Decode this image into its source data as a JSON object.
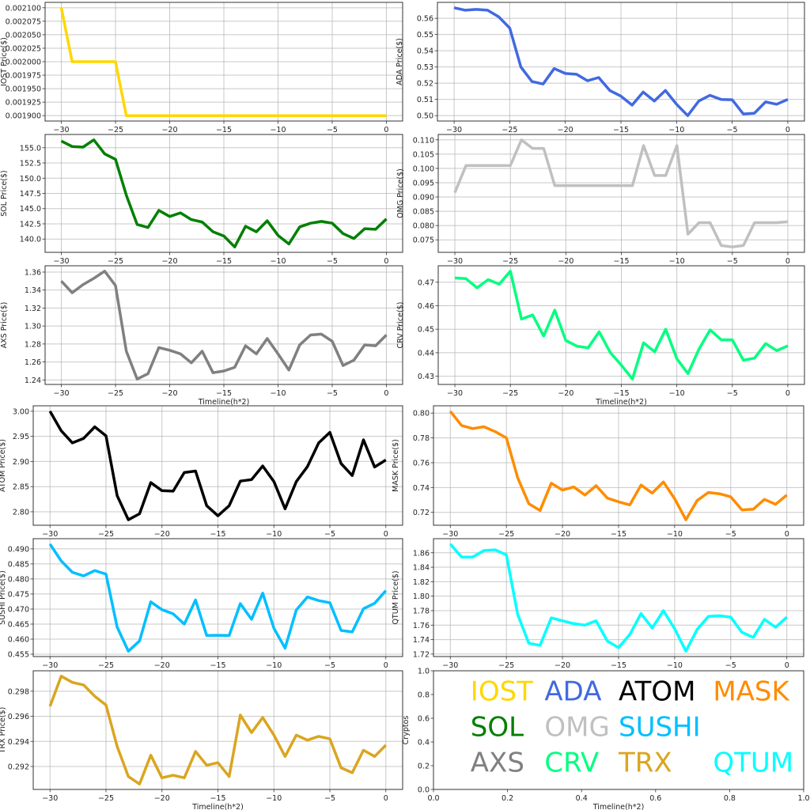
{
  "chart_data": [
    {
      "type": "line",
      "name": "IOST",
      "ylabel": "IOST Price($)",
      "xlabel": "",
      "color": "#FFD700",
      "xticks": [
        "−30",
        "−25",
        "−20",
        "−15",
        "−10",
        "−5",
        "0"
      ],
      "yticks": [
        "0.001900",
        "0.001925",
        "0.001950",
        "0.001975",
        "0.002000",
        "0.002025",
        "0.002050",
        "0.002075",
        "0.002100"
      ],
      "x": [
        -30,
        -29,
        -28,
        -27,
        -26,
        -25,
        -24,
        -23,
        -22,
        -21,
        -20,
        -19,
        -18,
        -17,
        -16,
        -15,
        -14,
        -13,
        -12,
        -11,
        -10,
        -9,
        -8,
        -7,
        -6,
        -5,
        -4,
        -3,
        -2,
        -1,
        0
      ],
      "values": [
        0.0021,
        0.002,
        0.002,
        0.002,
        0.002,
        0.002,
        0.0019,
        0.0019,
        0.0019,
        0.0019,
        0.0019,
        0.0019,
        0.0019,
        0.0019,
        0.0019,
        0.0019,
        0.0019,
        0.0019,
        0.0019,
        0.0019,
        0.0019,
        0.0019,
        0.0019,
        0.0019,
        0.0019,
        0.0019,
        0.0019,
        0.0019,
        0.0019,
        0.0019,
        0.0019
      ]
    },
    {
      "type": "line",
      "name": "ADA",
      "ylabel": "ADA  Price($)",
      "xlabel": "",
      "color": "#4169E1",
      "xticks": [
        "−30",
        "−25",
        "−20",
        "−15",
        "−10",
        "−5",
        "0"
      ],
      "yticks": [
        "0.50",
        "0.51",
        "0.52",
        "0.53",
        "0.54",
        "0.55",
        "0.56"
      ],
      "values": [
        0.5665,
        0.565,
        0.5655,
        0.565,
        0.561,
        0.554,
        0.53,
        0.521,
        0.5195,
        0.529,
        0.526,
        0.5255,
        0.5215,
        0.5235,
        0.5155,
        0.512,
        0.5065,
        0.5145,
        0.509,
        0.5155,
        0.507,
        0.5,
        0.509,
        0.5125,
        0.51,
        0.5098,
        0.501,
        0.5015,
        0.5085,
        0.507,
        0.51
      ]
    },
    {
      "type": "line",
      "name": "SOL",
      "ylabel": "SOL Price($)",
      "xlabel": "",
      "color": "#008000",
      "xticks": [
        "−30",
        "−25",
        "−20",
        "−15",
        "−10",
        "−5",
        "0"
      ],
      "yticks": [
        "140.0",
        "142.5",
        "145.0",
        "147.5",
        "150.0",
        "152.5",
        "155.0"
      ],
      "values": [
        156.1,
        155.2,
        155.1,
        156.3,
        154.0,
        153.1,
        147.2,
        142.4,
        141.9,
        144.7,
        143.7,
        144.3,
        143.2,
        142.8,
        141.2,
        140.5,
        138.7,
        142.1,
        141.2,
        143.0,
        140.6,
        139.2,
        142.0,
        142.6,
        142.9,
        142.6,
        140.9,
        140.1,
        141.7,
        141.6,
        143.3
      ]
    },
    {
      "type": "line",
      "name": "OMG",
      "ylabel": "OMG  Price($)",
      "xlabel": "",
      "color": "#C0C0C0",
      "xticks": [
        "−30",
        "−25",
        "−20",
        "−15",
        "−10",
        "−5",
        "0"
      ],
      "yticks": [
        "0.075",
        "0.080",
        "0.085",
        "0.090",
        "0.095",
        "0.100",
        "0.105",
        "0.110"
      ],
      "values": [
        0.0915,
        0.101,
        0.101,
        0.101,
        0.101,
        0.101,
        0.11,
        0.107,
        0.107,
        0.094,
        0.094,
        0.094,
        0.094,
        0.094,
        0.094,
        0.094,
        0.094,
        0.108,
        0.0975,
        0.0975,
        0.108,
        0.077,
        0.081,
        0.081,
        0.073,
        0.0725,
        0.073,
        0.081,
        0.081,
        0.081,
        0.0813
      ]
    },
    {
      "type": "line",
      "name": "AXS",
      "ylabel": "AXS Price($)",
      "xlabel": "Timeline(h*2)",
      "color": "#808080",
      "xticks": [
        "−30",
        "−25",
        "−20",
        "−15",
        "−10",
        "−5",
        "0"
      ],
      "yticks": [
        "1.24",
        "1.26",
        "1.28",
        "1.30",
        "1.32",
        "1.34",
        "1.36"
      ],
      "values": [
        1.35,
        1.337,
        1.346,
        1.353,
        1.361,
        1.345,
        1.272,
        1.241,
        1.247,
        1.276,
        1.273,
        1.269,
        1.259,
        1.272,
        1.248,
        1.25,
        1.254,
        1.278,
        1.269,
        1.286,
        1.269,
        1.251,
        1.279,
        1.29,
        1.291,
        1.283,
        1.256,
        1.262,
        1.279,
        1.278,
        1.29
      ]
    },
    {
      "type": "line",
      "name": "CRV",
      "ylabel": "CRV  Price($)",
      "xlabel": "Timeline(h*2)",
      "color": "#00FF7F",
      "xticks": [
        "−30",
        "−25",
        "−20",
        "−15",
        "−10",
        "−5",
        "0"
      ],
      "yticks": [
        "0.43",
        "0.44",
        "0.45",
        "0.46",
        "0.47"
      ],
      "values": [
        0.4718,
        0.4715,
        0.4676,
        0.4711,
        0.4692,
        0.4747,
        0.4543,
        0.4561,
        0.4471,
        0.4581,
        0.4452,
        0.4428,
        0.4421,
        0.4489,
        0.4401,
        0.4347,
        0.4288,
        0.4442,
        0.4404,
        0.45,
        0.4374,
        0.4311,
        0.4416,
        0.4497,
        0.4455,
        0.4455,
        0.4368,
        0.4377,
        0.4439,
        0.4409,
        0.4429
      ]
    },
    {
      "type": "line",
      "name": "ATOM",
      "ylabel": "ATOM  Price($)",
      "xlabel": "",
      "color": "#000000",
      "xticks": [
        "−30",
        "−25",
        "−20",
        "−15",
        "−10",
        "−5",
        "0"
      ],
      "yticks": [
        "2.80",
        "2.85",
        "2.90",
        "2.95",
        "3.00"
      ],
      "values": [
        3.0,
        2.961,
        2.937,
        2.946,
        2.969,
        2.951,
        2.832,
        2.784,
        2.796,
        2.858,
        2.842,
        2.841,
        2.878,
        2.881,
        2.812,
        2.792,
        2.812,
        2.861,
        2.864,
        2.891,
        2.86,
        2.806,
        2.86,
        2.89,
        2.937,
        2.958,
        2.896,
        2.872,
        2.943,
        2.889,
        2.903
      ]
    },
    {
      "type": "line",
      "name": "MASK",
      "ylabel": "MASK  Price($)",
      "xlabel": "",
      "color": "#FF8C00",
      "xticks": [
        "−30",
        "−25",
        "−20",
        "−15",
        "−10",
        "−5",
        "0"
      ],
      "yticks": [
        "0.72",
        "0.74",
        "0.76",
        "0.78",
        "0.80"
      ],
      "values": [
        0.8015,
        0.79,
        0.7875,
        0.789,
        0.785,
        0.78,
        0.748,
        0.727,
        0.7215,
        0.7435,
        0.738,
        0.7405,
        0.734,
        0.7415,
        0.7315,
        0.7285,
        0.726,
        0.742,
        0.7355,
        0.7445,
        0.731,
        0.714,
        0.7295,
        0.736,
        0.735,
        0.7325,
        0.722,
        0.7225,
        0.7305,
        0.7265,
        0.734
      ]
    },
    {
      "type": "line",
      "name": "SUSHI",
      "ylabel": "SUSHI  Price($)",
      "xlabel": "",
      "color": "#00BFFF",
      "xticks": [
        "−30",
        "−25",
        "−20",
        "−15",
        "−10",
        "−5",
        "0"
      ],
      "yticks": [
        "0.455",
        "0.460",
        "0.465",
        "0.470",
        "0.475",
        "0.480",
        "0.485",
        "0.490"
      ],
      "values": [
        0.4916,
        0.486,
        0.4822,
        0.481,
        0.4828,
        0.4816,
        0.464,
        0.456,
        0.4594,
        0.4724,
        0.4698,
        0.4684,
        0.465,
        0.473,
        0.4612,
        0.4613,
        0.4612,
        0.4718,
        0.4666,
        0.4753,
        0.4636,
        0.457,
        0.4697,
        0.474,
        0.4728,
        0.4721,
        0.4629,
        0.4624,
        0.4701,
        0.4719,
        0.4761
      ]
    },
    {
      "type": "line",
      "name": "QTUM",
      "ylabel": "QTUM Price($)",
      "xlabel": "",
      "color": "#00FFFF",
      "xticks": [
        "−30",
        "−25",
        "−20",
        "−15",
        "−10",
        "−5",
        "0"
      ],
      "yticks": [
        "1.72",
        "1.74",
        "1.76",
        "1.78",
        "1.80",
        "1.82",
        "1.84",
        "1.86"
      ],
      "values": [
        1.872,
        1.854,
        1.854,
        1.863,
        1.864,
        1.857,
        1.775,
        1.735,
        1.732,
        1.77,
        1.766,
        1.762,
        1.76,
        1.766,
        1.738,
        1.729,
        1.747,
        1.776,
        1.756,
        1.78,
        1.755,
        1.724,
        1.754,
        1.772,
        1.773,
        1.771,
        1.75,
        1.743,
        1.768,
        1.757,
        1.771
      ]
    },
    {
      "type": "line",
      "name": "TRX",
      "ylabel": "TRX Price($)",
      "xlabel": "Timeline(h*2)",
      "color": "#DAA520",
      "xticks": [
        "−30",
        "−25",
        "−20",
        "−15",
        "−10",
        "−5",
        "0"
      ],
      "yticks": [
        "0.292",
        "0.294",
        "0.296",
        "0.298"
      ],
      "values": [
        0.2968,
        0.2992,
        0.2987,
        0.2985,
        0.2976,
        0.2969,
        0.2936,
        0.2912,
        0.2906,
        0.2929,
        0.2911,
        0.2913,
        0.2911,
        0.2932,
        0.2921,
        0.2923,
        0.2912,
        0.2961,
        0.2947,
        0.2959,
        0.2945,
        0.2928,
        0.2945,
        0.2941,
        0.2944,
        0.2942,
        0.2919,
        0.2915,
        0.2933,
        0.2928,
        0.2937
      ]
    },
    {
      "type": "legend",
      "name": "legend",
      "ylabel": "Cryptos",
      "xlabel": "Timeline(h*2)",
      "xlim": [
        0,
        1
      ],
      "ylim": [
        0,
        1
      ],
      "xticks": [
        "0.0",
        "0.2",
        "0.4",
        "0.6",
        "0.8",
        "1.0"
      ],
      "yticks": [
        "0.0",
        "0.2",
        "0.4",
        "0.6",
        "0.8",
        "1.0"
      ],
      "entries": [
        {
          "label": "IOST",
          "color": "#FFD700"
        },
        {
          "label": "ADA",
          "color": "#4169E1"
        },
        {
          "label": "ATOM",
          "color": "#000000"
        },
        {
          "label": "MASK",
          "color": "#FF8C00"
        },
        {
          "label": "SOL",
          "color": "#008000"
        },
        {
          "label": "OMG",
          "color": "#C0C0C0"
        },
        {
          "label": "SUSHI",
          "color": "#00BFFF"
        },
        {
          "label": "AXS",
          "color": "#808080"
        },
        {
          "label": "CRV",
          "color": "#00FF7F"
        },
        {
          "label": "TRX",
          "color": "#DAA520"
        },
        {
          "label": "QTUM",
          "color": "#00FFFF"
        }
      ]
    }
  ]
}
